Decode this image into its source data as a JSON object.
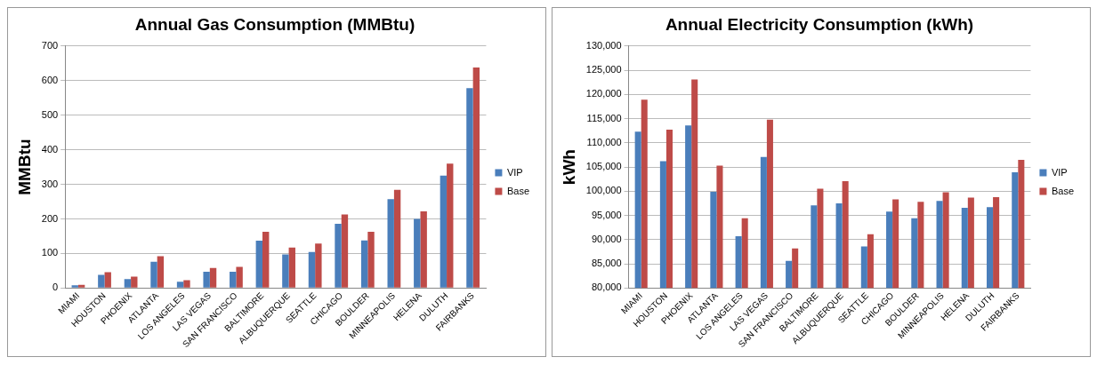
{
  "chart_data": [
    {
      "type": "bar",
      "title": "Annual Gas Consumption (MMBtu)",
      "ylabel": "MMBtu",
      "categories": [
        "MIAMI",
        "HOUSTON",
        "PHOENIX",
        "ATLANTA",
        "LOS ANGELES",
        "LAS VEGAS",
        "SAN FRANCISCO",
        "BALTIMORE",
        "ALBUQUERQUE",
        "SEATTLE",
        "CHICAGO",
        "BOULDER",
        "MINNEAPOLIS",
        "HELENA",
        "DULUTH",
        "FAIRBANKS"
      ],
      "series": [
        {
          "name": "VIP",
          "color": "#4a7ebb",
          "values": [
            8,
            38,
            26,
            76,
            18,
            47,
            47,
            137,
            97,
            104,
            186,
            138,
            257,
            200,
            325,
            578
          ]
        },
        {
          "name": "Base",
          "color": "#be4b48",
          "values": [
            9,
            46,
            33,
            92,
            23,
            58,
            61,
            163,
            117,
            129,
            213,
            163,
            284,
            222,
            360,
            638
          ]
        }
      ],
      "ylim": [
        0,
        700
      ],
      "yticks": [
        0,
        100,
        200,
        300,
        400,
        500,
        600,
        700
      ],
      "grid": "y",
      "legend": "right"
    },
    {
      "type": "bar",
      "title": "Annual Electricity Consumption (kWh)",
      "ylabel": "kWh",
      "categories": [
        "MIAMI",
        "HOUSTON",
        "PHOENIX",
        "ATLANTA",
        "LOS ANGELES",
        "LAS VEGAS",
        "SAN FRANCISCO",
        "BALTIMORE",
        "ALBUQUERQUE",
        "SEATTLE",
        "CHICAGO",
        "BOULDER",
        "MINNEAPOLIS",
        "HELENA",
        "DULUTH",
        "FAIRBANKS"
      ],
      "series": [
        {
          "name": "VIP",
          "color": "#4a7ebb",
          "values": [
            112300,
            106200,
            113600,
            99900,
            90700,
            107100,
            85600,
            97100,
            97500,
            88600,
            95800,
            94400,
            98000,
            96600,
            96700,
            103900
          ]
        },
        {
          "name": "Base",
          "color": "#be4b48",
          "values": [
            118900,
            112700,
            123100,
            105300,
            94400,
            114800,
            88200,
            100500,
            102100,
            91100,
            98300,
            97800,
            99800,
            98700,
            98800,
            106500
          ]
        }
      ],
      "ylim": [
        80000,
        130000
      ],
      "yticks": [
        {
          "value": 80000,
          "label": "80,000"
        },
        {
          "value": 85000,
          "label": "85,000"
        },
        {
          "value": 90000,
          "label": "90,000"
        },
        {
          "value": 95000,
          "label": "95,000"
        },
        {
          "value": 100000,
          "label": "100,000"
        },
        {
          "value": 105000,
          "label": "105,000"
        },
        {
          "value": 110000,
          "label": "110,000"
        },
        {
          "value": 115000,
          "label": "115,000"
        },
        {
          "value": 120000,
          "label": "120,000"
        },
        {
          "value": 125000,
          "label": "125,000"
        },
        {
          "value": 130000,
          "label": "130,000"
        }
      ],
      "grid": "y",
      "legend": "right"
    }
  ]
}
